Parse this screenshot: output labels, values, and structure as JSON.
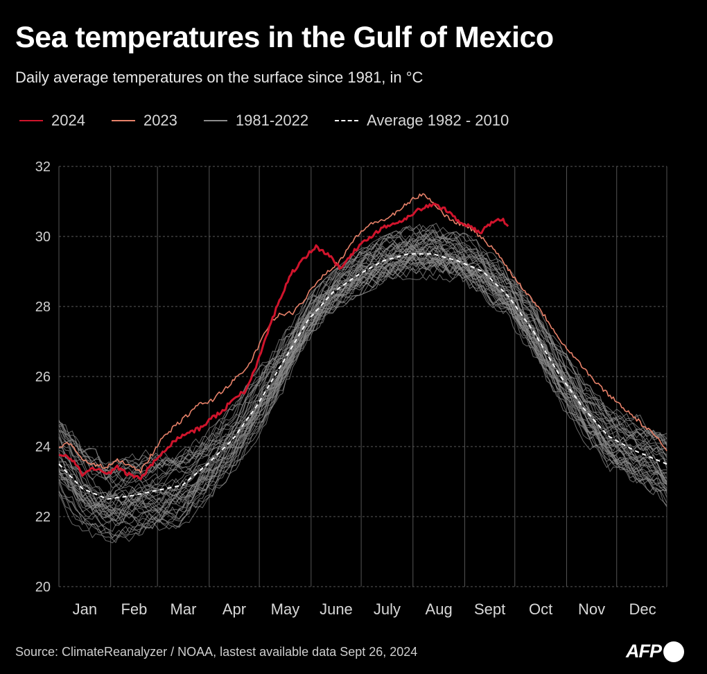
{
  "header": {
    "title": "Sea temperatures in the Gulf of Mexico",
    "subtitle": "Daily average temperatures on the surface since 1981, in °C"
  },
  "footer": {
    "source": "Source: ClimateReanalyzer / NOAA, lastest available data Sept 26,  2024",
    "logo": "AFP"
  },
  "colors": {
    "background": "#000000",
    "y2024": "#d0142c",
    "y2023": "#e8826a",
    "historical": "#8c8c8c",
    "average": "#ffffff"
  },
  "chart_data": {
    "type": "line",
    "title": "Sea temperatures in the Gulf of Mexico",
    "subtitle": "Daily average temperatures on the surface since 1981, in °C",
    "ylabel": "",
    "xlabel": "",
    "ylim": [
      20,
      32
    ],
    "yticks": [
      "20",
      "22",
      "24",
      "26",
      "28",
      "30",
      "32"
    ],
    "months": [
      "Jan",
      "Feb",
      "Mar",
      "Apr",
      "May",
      "June",
      "July",
      "Aug",
      "Sept",
      "Oct",
      "Nov",
      "Dec"
    ],
    "grid": "horizontal dashed, vertical solid month dividers",
    "legend_position": "top",
    "legend": [
      {
        "label": "2024",
        "style": "solid",
        "color": "#d0142c"
      },
      {
        "label": "2023",
        "style": "solid",
        "color": "#e8826a"
      },
      {
        "label": "1981-2022",
        "style": "solid",
        "color": "#8c8c8c"
      },
      {
        "label": "Average 1982 - 2010",
        "style": "dashed",
        "color": "#ffffff"
      }
    ],
    "series": [
      {
        "name": "2024",
        "days": [
          1,
          8,
          15,
          22,
          29,
          36,
          43,
          50,
          57,
          64,
          71,
          78,
          85,
          92,
          99,
          106,
          113,
          120,
          127,
          134,
          141,
          148,
          155,
          162,
          169,
          176,
          183,
          190,
          197,
          204,
          211,
          218,
          225,
          232,
          239,
          246,
          253,
          260,
          266,
          270
        ],
        "values": [
          23.8,
          23.7,
          23.2,
          23.4,
          23.2,
          23.4,
          23.2,
          23.1,
          23.5,
          23.9,
          24.2,
          24.4,
          24.5,
          24.8,
          25.0,
          25.4,
          25.6,
          26.4,
          27.4,
          28.3,
          29.0,
          29.4,
          29.7,
          29.5,
          29.1,
          29.5,
          29.8,
          30.1,
          30.3,
          30.4,
          30.6,
          30.8,
          30.9,
          30.8,
          30.5,
          30.3,
          30.1,
          30.4,
          30.5,
          30.3
        ]
      },
      {
        "name": "2023",
        "days": [
          1,
          8,
          15,
          22,
          29,
          36,
          43,
          50,
          57,
          64,
          71,
          78,
          85,
          92,
          99,
          106,
          113,
          120,
          127,
          134,
          141,
          148,
          155,
          162,
          169,
          176,
          183,
          190,
          197,
          204,
          211,
          218,
          225,
          232,
          239,
          246,
          253,
          260,
          267,
          274,
          281,
          288,
          295,
          302,
          309,
          316,
          323,
          330,
          337,
          344,
          351,
          358,
          365
        ],
        "values": [
          24.0,
          24.1,
          23.6,
          23.5,
          23.4,
          23.6,
          23.5,
          23.3,
          23.8,
          24.3,
          24.6,
          24.9,
          25.2,
          25.3,
          25.6,
          25.9,
          26.2,
          26.8,
          27.5,
          27.8,
          27.8,
          28.2,
          28.7,
          29.0,
          29.3,
          29.8,
          30.2,
          30.4,
          30.5,
          30.7,
          31.0,
          31.2,
          31.0,
          30.6,
          30.4,
          30.3,
          30.0,
          29.7,
          29.3,
          28.8,
          28.4,
          28.0,
          27.5,
          27.0,
          26.6,
          26.2,
          25.8,
          25.5,
          25.2,
          24.9,
          24.6,
          24.3,
          23.9
        ]
      },
      {
        "name": "Average 1982 - 2010",
        "days": [
          1,
          15,
          30,
          45,
          60,
          75,
          90,
          105,
          120,
          135,
          150,
          165,
          180,
          195,
          210,
          225,
          240,
          255,
          270,
          285,
          300,
          315,
          330,
          345,
          360,
          365
        ],
        "values": [
          23.5,
          22.8,
          22.5,
          22.6,
          22.75,
          22.9,
          23.5,
          24.2,
          25.2,
          26.4,
          27.6,
          28.4,
          28.9,
          29.3,
          29.5,
          29.5,
          29.3,
          29.0,
          28.3,
          27.3,
          26.1,
          25.1,
          24.3,
          23.9,
          23.6,
          23.5
        ]
      }
    ],
    "historical_band": {
      "name": "1981-2022",
      "range_note": "spread of daily values across years 1981-2022",
      "days": [
        1,
        15,
        30,
        45,
        60,
        75,
        90,
        105,
        120,
        135,
        150,
        165,
        180,
        195,
        210,
        225,
        240,
        255,
        270,
        285,
        300,
        315,
        330,
        345,
        360,
        365
      ],
      "low": [
        22.3,
        21.4,
        21.1,
        21.2,
        21.3,
        21.6,
        22.3,
        23.2,
        24.2,
        25.5,
        26.9,
        27.8,
        28.3,
        28.6,
        28.8,
        28.7,
        28.7,
        28.2,
        27.6,
        26.5,
        25.2,
        24.0,
        23.2,
        22.8,
        22.4,
        22.0
      ],
      "high": [
        25.2,
        24.4,
        23.8,
        24.0,
        24.1,
        24.2,
        24.6,
        25.2,
        26.2,
        27.2,
        28.3,
        29.0,
        29.6,
        30.0,
        30.3,
        30.4,
        30.2,
        29.8,
        29.1,
        28.2,
        27.1,
        26.1,
        25.4,
        25.0,
        24.8,
        24.6
      ]
    }
  }
}
